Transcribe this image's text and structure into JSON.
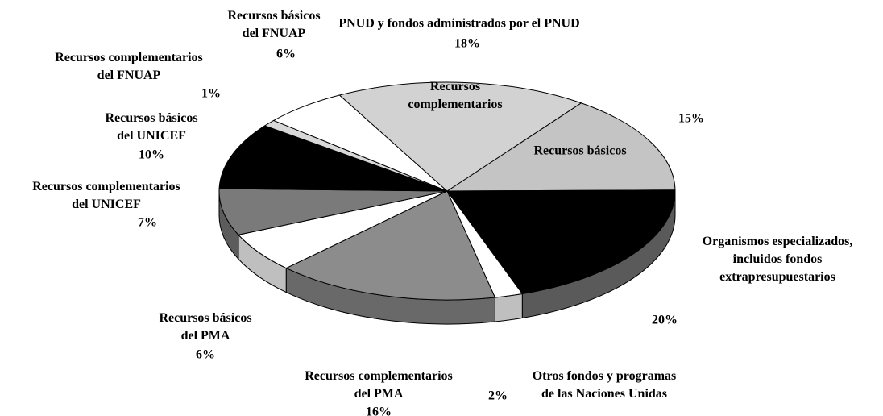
{
  "chart_data": {
    "type": "pie3d",
    "group_label": "PNUD y fondos administrados por el PNUD",
    "categories": [
      "Recursos básicos",
      "Organismos especializados,\nincluidos fondos\nextrapresupuestarios",
      "Otros fondos y programas\nde las Naciones Unidas",
      "Recursos complementarios\ndel PMA",
      "Recursos básicos\ndel PMA",
      "Recursos complementarios\ndel UNICEF",
      "Recursos básicos\ndel UNICEF",
      "Recursos complementarios\ndel FNUAP",
      "Recursos básicos\ndel FNUAP",
      "Recursos\ncomplementarios"
    ],
    "values": [
      15,
      20,
      2,
      16,
      6,
      7,
      10,
      1,
      6,
      18
    ],
    "value_labels": [
      "15%",
      "20%",
      "2%",
      "16%",
      "6%",
      "7%",
      "10%",
      "1%",
      "6%",
      "18%"
    ],
    "colors": [
      "#c4c4c4",
      "#000000",
      "#ffffff",
      "#8c8c8c",
      "#ffffff",
      "#7a7a7a",
      "#000000",
      "#d8d8d8",
      "#ffffff",
      "#d2d2d2"
    ]
  }
}
